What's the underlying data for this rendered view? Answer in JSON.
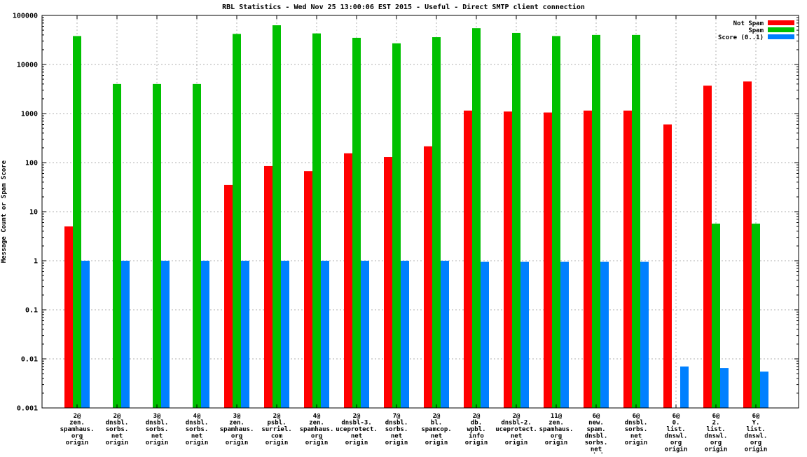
{
  "title": "RBL Statistics - Wed Nov 25 13:00:06 EST 2015 - Useful - Direct SMTP client connection",
  "chart_data": {
    "type": "bar",
    "title": "RBL Statistics - Wed Nov 25 13:00:06 EST 2015 - Useful - Direct SMTP client connection",
    "xlabel": "",
    "ylabel": "Message Count or Spam Score",
    "y_scale": "log",
    "ylim": [
      0.001,
      100000
    ],
    "y_ticks": [
      "100000",
      "10000",
      "1000",
      "100",
      "10",
      "1",
      "0.1",
      "0.01",
      "0.001"
    ],
    "grid": true,
    "legend_position": "top-right",
    "categories": [
      [
        "2@",
        "zen.",
        "spamhaus.",
        "org",
        "origin"
      ],
      [
        "2@",
        "dnsbl.",
        "sorbs.",
        "net",
        "origin"
      ],
      [
        "3@",
        "dnsbl.",
        "sorbs.",
        "net",
        "origin"
      ],
      [
        "4@",
        "dnsbl.",
        "sorbs.",
        "net",
        "origin"
      ],
      [
        "3@",
        "zen.",
        "spamhaus.",
        "org",
        "origin"
      ],
      [
        "2@",
        "psbl.",
        "surriel.",
        "com",
        "origin"
      ],
      [
        "4@",
        "zen.",
        "spamhaus.",
        "org",
        "origin"
      ],
      [
        "2@",
        "dnsbl-3.",
        "uceprotect.",
        "net",
        "origin"
      ],
      [
        "7@",
        "dnsbl.",
        "sorbs.",
        "net",
        "origin"
      ],
      [
        "2@",
        "bl.",
        "spamcop.",
        "net",
        "origin"
      ],
      [
        "2@",
        "db.",
        "wpbl.",
        "info",
        "origin"
      ],
      [
        "2@",
        "dnsbl-2.",
        "uceprotect.",
        "net",
        "origin"
      ],
      [
        "11@",
        "zen.",
        "spamhaus.",
        "org",
        "origin"
      ],
      [
        "6@",
        "new.",
        "spam.",
        "dnsbl.",
        "sorbs.",
        "net",
        "origin"
      ],
      [
        "6@",
        "dnsbl.",
        "sorbs.",
        "net",
        "origin"
      ],
      [
        "6@",
        "0.",
        "list.",
        "dnswl.",
        "org",
        "origin"
      ],
      [
        "6@",
        "2.",
        "list.",
        "dnswl.",
        "org",
        "origin"
      ],
      [
        "6@",
        "Y.",
        "list.",
        "dnswl.",
        "org",
        "origin"
      ]
    ],
    "series": [
      {
        "name": "Not Spam",
        "color": "#ff0000",
        "values": [
          5,
          null,
          null,
          null,
          35,
          85,
          67,
          155,
          130,
          215,
          1150,
          1100,
          1050,
          1150,
          1150,
          600,
          3700,
          4500
        ]
      },
      {
        "name": "Spam",
        "color": "#00c000",
        "values": [
          38000,
          4000,
          4000,
          4000,
          42000,
          63000,
          43000,
          35000,
          27000,
          36000,
          55000,
          44000,
          38000,
          40000,
          40000,
          null,
          5.7,
          5.7
        ]
      },
      {
        "name": "Score (0..1)",
        "color": "#0080ff",
        "values": [
          1,
          1,
          1,
          1,
          1,
          1,
          1,
          1,
          1,
          1,
          0.95,
          0.95,
          0.95,
          0.95,
          0.95,
          0.007,
          0.0065,
          0.0055
        ]
      }
    ]
  },
  "colors": {
    "background": "#ffffff",
    "border": "#000000",
    "grid": "#b0b0b0",
    "not_spam": "#ff0000",
    "spam": "#00c000",
    "score": "#0080ff"
  }
}
